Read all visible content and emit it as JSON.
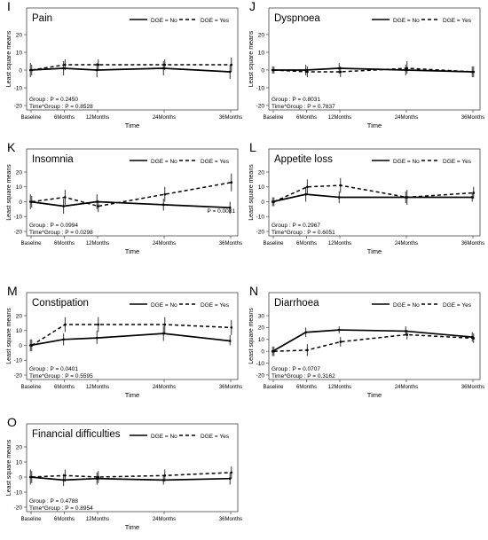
{
  "figure": {
    "x_ticks": [
      "Baseline",
      "6Months",
      "12Months",
      "24Months",
      "36Months"
    ],
    "x_months": [
      0,
      6,
      12,
      24,
      36
    ],
    "xlabel": "Time",
    "ylabel": "Least square means",
    "legend": {
      "no_label": "DGE = No",
      "yes_label": "DGE = Yes",
      "placement": "top-right",
      "no_style": "solid",
      "yes_style": "dashed"
    },
    "line_color": "#000000",
    "grid": false
  },
  "chart_data": [
    {
      "type": "line",
      "letter": "I",
      "title": "Pain",
      "x": [
        "Baseline",
        "6Months",
        "12Months",
        "24Months",
        "36Months"
      ],
      "ylim": [
        -20,
        20
      ],
      "yticks": [
        -20,
        -10,
        0,
        10,
        20
      ],
      "series": [
        {
          "name": "DGE = No",
          "values": [
            0,
            1,
            0,
            1,
            -1
          ],
          "ci_low": [
            -4,
            -3,
            -4,
            -3,
            -5
          ],
          "ci_high": [
            4,
            5,
            4,
            5,
            3
          ]
        },
        {
          "name": "DGE = Yes",
          "values": [
            0,
            3,
            3,
            3,
            3
          ],
          "ci_low": [
            -3,
            0,
            0,
            0,
            -1
          ],
          "ci_high": [
            3,
            6,
            6,
            6,
            7
          ]
        }
      ],
      "annotations": [
        "Group : P = 0.2450",
        "Time*Group : P = 0.8528"
      ]
    },
    {
      "type": "line",
      "letter": "J",
      "title": "Dyspnoea",
      "x": [
        "Baseline",
        "6Months",
        "12Months",
        "24Months",
        "36Months"
      ],
      "ylim": [
        -20,
        20
      ],
      "yticks": [
        -20,
        -10,
        0,
        10,
        20
      ],
      "series": [
        {
          "name": "DGE = No",
          "values": [
            0,
            0,
            1,
            0,
            -1
          ],
          "ci_low": [
            -2,
            -3,
            -2,
            -3,
            -4
          ],
          "ci_high": [
            2,
            3,
            4,
            3,
            2
          ]
        },
        {
          "name": "DGE = Yes",
          "values": [
            0,
            -1,
            -1,
            1,
            -1
          ],
          "ci_low": [
            -2,
            -4,
            -4,
            -2,
            -4
          ],
          "ci_high": [
            2,
            2,
            2,
            5,
            2
          ]
        }
      ],
      "annotations": [
        "Group : P = 0.8031",
        "Time*Group : P = 0.7837"
      ]
    },
    {
      "type": "line",
      "letter": "K",
      "title": "Insomnia",
      "x": [
        "Baseline",
        "6Months",
        "12Months",
        "24Months",
        "36Months"
      ],
      "ylim": [
        -20,
        20
      ],
      "yticks": [
        -20,
        -10,
        0,
        10,
        20
      ],
      "series": [
        {
          "name": "DGE = No",
          "values": [
            0,
            -3,
            0,
            -2,
            -4
          ],
          "ci_low": [
            -5,
            -8,
            -5,
            -6,
            -8
          ],
          "ci_high": [
            5,
            2,
            5,
            2,
            0
          ]
        },
        {
          "name": "DGE = Yes",
          "values": [
            0,
            3,
            -3,
            5,
            13
          ],
          "ci_low": [
            -4,
            -2,
            -7,
            0,
            7
          ],
          "ci_high": [
            4,
            8,
            1,
            10,
            19
          ]
        }
      ],
      "annotations": [
        "Group : P = 0.0994",
        "Time*Group : P = 0.0298",
        "P = 0.0081"
      ]
    },
    {
      "type": "line",
      "letter": "L",
      "title": "Appetite loss",
      "x": [
        "Baseline",
        "6Months",
        "12Months",
        "24Months",
        "36Months"
      ],
      "ylim": [
        -20,
        20
      ],
      "yticks": [
        -20,
        -10,
        0,
        10,
        20
      ],
      "series": [
        {
          "name": "DGE = No",
          "values": [
            0,
            5,
            3,
            3,
            3
          ],
          "ci_low": [
            -3,
            0,
            -1,
            -1,
            0
          ],
          "ci_high": [
            3,
            10,
            7,
            7,
            6
          ]
        },
        {
          "name": "DGE = Yes",
          "values": [
            0,
            10,
            11,
            3,
            6
          ],
          "ci_low": [
            -3,
            5,
            6,
            -2,
            2
          ],
          "ci_high": [
            3,
            15,
            16,
            8,
            10
          ]
        }
      ],
      "annotations": [
        "Group : P = 0.2967",
        "Time*Group : P = 0.6051"
      ]
    },
    {
      "type": "line",
      "letter": "M",
      "title": "Constipation",
      "x": [
        "Baseline",
        "6Months",
        "12Months",
        "24Months",
        "36Months"
      ],
      "ylim": [
        -20,
        20
      ],
      "yticks": [
        -20,
        -10,
        0,
        10,
        20
      ],
      "series": [
        {
          "name": "DGE = No",
          "values": [
            0,
            4,
            5,
            8,
            3
          ],
          "ci_low": [
            -4,
            0,
            1,
            3,
            0
          ],
          "ci_high": [
            4,
            8,
            10,
            13,
            7
          ]
        },
        {
          "name": "DGE = Yes",
          "values": [
            0,
            14,
            14,
            14,
            12
          ],
          "ci_low": [
            -4,
            9,
            9,
            8,
            7
          ],
          "ci_high": [
            4,
            19,
            19,
            19,
            17
          ]
        }
      ],
      "annotations": [
        "Group : P = 0.0401",
        "Time*Group : P = 0.5595"
      ]
    },
    {
      "type": "line",
      "letter": "N",
      "title": "Diarrhoea",
      "x": [
        "Baseline",
        "6Months",
        "12Months",
        "24Months",
        "36Months"
      ],
      "ylim": [
        -20,
        30
      ],
      "yticks": [
        -20,
        -10,
        0,
        10,
        20,
        30
      ],
      "series": [
        {
          "name": "DGE = No",
          "values": [
            0,
            16,
            18,
            17,
            12
          ],
          "ci_low": [
            -4,
            12,
            15,
            14,
            8
          ],
          "ci_high": [
            4,
            20,
            21,
            21,
            16
          ]
        },
        {
          "name": "DGE = Yes",
          "values": [
            0,
            1,
            8,
            14,
            11
          ],
          "ci_low": [
            -4,
            -4,
            4,
            10,
            7
          ],
          "ci_high": [
            4,
            6,
            12,
            18,
            15
          ]
        }
      ],
      "annotations": [
        "Group : P = 0.0707",
        "Time*Group : P = 0.3162"
      ]
    },
    {
      "type": "line",
      "letter": "O",
      "title": "Financial difficulties",
      "x": [
        "Baseline",
        "6Months",
        "12Months",
        "24Months",
        "36Months"
      ],
      "ylim": [
        -20,
        20
      ],
      "yticks": [
        -20,
        -10,
        0,
        10,
        20
      ],
      "series": [
        {
          "name": "DGE = No",
          "values": [
            0,
            -2,
            -1,
            -2,
            -1
          ],
          "ci_low": [
            -5,
            -6,
            -5,
            -5,
            -5
          ],
          "ci_high": [
            5,
            2,
            3,
            1,
            3
          ]
        },
        {
          "name": "DGE = Yes",
          "values": [
            0,
            1,
            0,
            1,
            3
          ],
          "ci_low": [
            -4,
            -3,
            -4,
            -3,
            -1
          ],
          "ci_high": [
            4,
            5,
            4,
            5,
            7
          ]
        }
      ],
      "annotations": [
        "Group : P = 0.4788",
        "Time*Group : P = 0.8954"
      ]
    }
  ]
}
